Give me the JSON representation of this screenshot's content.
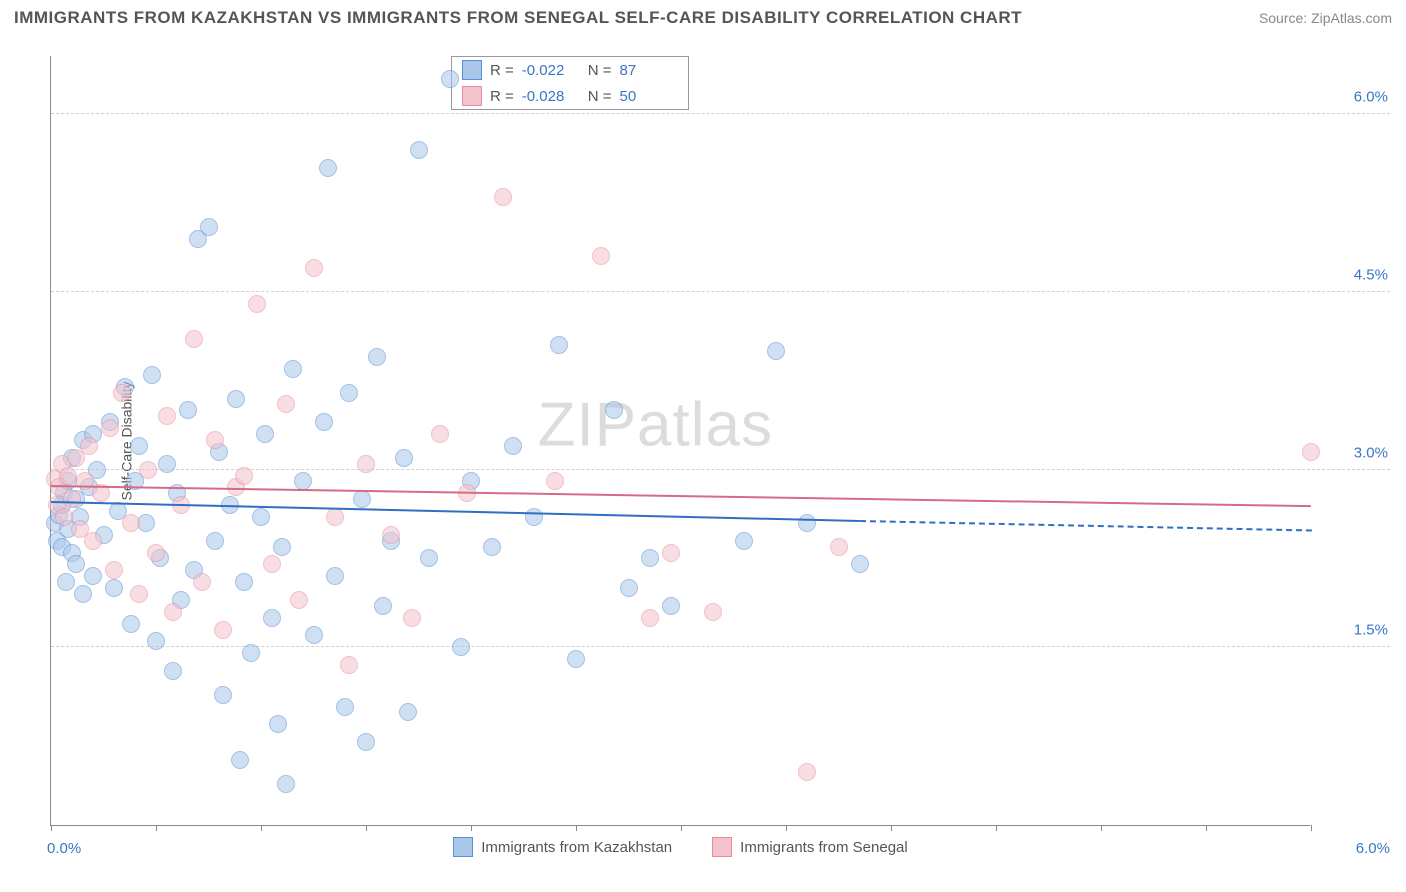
{
  "title": "IMMIGRANTS FROM KAZAKHSTAN VS IMMIGRANTS FROM SENEGAL SELF-CARE DISABILITY CORRELATION CHART",
  "source": "Source: ZipAtlas.com",
  "watermark_a": "ZIP",
  "watermark_b": "atlas",
  "chart": {
    "type": "scatter",
    "ylabel": "Self-Care Disability",
    "xlim": [
      0.0,
      6.0
    ],
    "ylim": [
      0.0,
      6.5
    ],
    "x_ticks": [
      0.0,
      0.5,
      1.0,
      1.5,
      2.0,
      2.5,
      3.0,
      3.5,
      4.0,
      4.5,
      5.0,
      5.5,
      6.0
    ],
    "y_gridlines": [
      1.5,
      3.0,
      4.5,
      6.0
    ],
    "y_tick_labels": [
      "1.5%",
      "3.0%",
      "4.5%",
      "6.0%"
    ],
    "x_axis_left_label": "0.0%",
    "x_axis_right_label": "6.0%",
    "background_color": "#ffffff",
    "grid_color": "#d0d0d0",
    "axis_color": "#888888",
    "label_fontsize": 14,
    "tick_label_color": "#3b75c4",
    "marker_radius": 9,
    "marker_opacity": 0.55,
    "watermark_color": "#dcdcdc",
    "series": [
      {
        "name": "Immigrants from Kazakhstan",
        "fill_color": "#a9c7eb",
        "stroke_color": "#5a8fd4",
        "trend_color": "#2f6fc1",
        "R": "-0.022",
        "N": "87",
        "trend": {
          "x1": 0.0,
          "y1": 2.72,
          "x2": 3.85,
          "y2": 2.56,
          "dash_x2": 6.0,
          "dash_y2": 2.48
        },
        "points": [
          [
            0.02,
            2.55
          ],
          [
            0.03,
            2.4
          ],
          [
            0.04,
            2.62
          ],
          [
            0.05,
            2.35
          ],
          [
            0.05,
            2.7
          ],
          [
            0.06,
            2.8
          ],
          [
            0.07,
            2.05
          ],
          [
            0.08,
            2.9
          ],
          [
            0.08,
            2.5
          ],
          [
            0.1,
            2.3
          ],
          [
            0.1,
            3.1
          ],
          [
            0.12,
            2.75
          ],
          [
            0.12,
            2.2
          ],
          [
            0.14,
            2.6
          ],
          [
            0.15,
            3.25
          ],
          [
            0.15,
            1.95
          ],
          [
            0.18,
            2.85
          ],
          [
            0.2,
            3.3
          ],
          [
            0.2,
            2.1
          ],
          [
            0.22,
            3.0
          ],
          [
            0.25,
            2.45
          ],
          [
            0.28,
            3.4
          ],
          [
            0.3,
            2.0
          ],
          [
            0.32,
            2.65
          ],
          [
            0.35,
            3.7
          ],
          [
            0.38,
            1.7
          ],
          [
            0.4,
            2.9
          ],
          [
            0.42,
            3.2
          ],
          [
            0.45,
            2.55
          ],
          [
            0.48,
            3.8
          ],
          [
            0.5,
            1.55
          ],
          [
            0.52,
            2.25
          ],
          [
            0.55,
            3.05
          ],
          [
            0.58,
            1.3
          ],
          [
            0.6,
            2.8
          ],
          [
            0.62,
            1.9
          ],
          [
            0.65,
            3.5
          ],
          [
            0.68,
            2.15
          ],
          [
            0.7,
            4.95
          ],
          [
            0.75,
            5.05
          ],
          [
            0.78,
            2.4
          ],
          [
            0.8,
            3.15
          ],
          [
            0.82,
            1.1
          ],
          [
            0.85,
            2.7
          ],
          [
            0.88,
            3.6
          ],
          [
            0.9,
            0.55
          ],
          [
            0.92,
            2.05
          ],
          [
            0.95,
            1.45
          ],
          [
            1.0,
            2.6
          ],
          [
            1.02,
            3.3
          ],
          [
            1.05,
            1.75
          ],
          [
            1.08,
            0.85
          ],
          [
            1.1,
            2.35
          ],
          [
            1.12,
            0.35
          ],
          [
            1.15,
            3.85
          ],
          [
            1.2,
            2.9
          ],
          [
            1.25,
            1.6
          ],
          [
            1.3,
            3.4
          ],
          [
            1.32,
            5.55
          ],
          [
            1.35,
            2.1
          ],
          [
            1.4,
            1.0
          ],
          [
            1.42,
            3.65
          ],
          [
            1.48,
            2.75
          ],
          [
            1.5,
            0.7
          ],
          [
            1.55,
            3.95
          ],
          [
            1.58,
            1.85
          ],
          [
            1.62,
            2.4
          ],
          [
            1.68,
            3.1
          ],
          [
            1.7,
            0.95
          ],
          [
            1.75,
            5.7
          ],
          [
            1.8,
            2.25
          ],
          [
            1.9,
            6.3
          ],
          [
            1.95,
            1.5
          ],
          [
            2.0,
            2.9
          ],
          [
            2.1,
            2.35
          ],
          [
            2.2,
            3.2
          ],
          [
            2.3,
            2.6
          ],
          [
            2.42,
            4.05
          ],
          [
            2.5,
            1.4
          ],
          [
            2.68,
            3.5
          ],
          [
            2.75,
            2.0
          ],
          [
            2.85,
            2.25
          ],
          [
            2.95,
            1.85
          ],
          [
            3.3,
            2.4
          ],
          [
            3.45,
            4.0
          ],
          [
            3.6,
            2.55
          ],
          [
            3.85,
            2.2
          ]
        ]
      },
      {
        "name": "Immigrants from Senegal",
        "fill_color": "#f3c3cd",
        "stroke_color": "#e88da0",
        "trend_color": "#d66b86",
        "R": "-0.028",
        "N": "50",
        "trend": {
          "x1": 0.0,
          "y1": 2.85,
          "x2": 6.0,
          "y2": 2.68
        },
        "points": [
          [
            0.02,
            2.92
          ],
          [
            0.03,
            2.7
          ],
          [
            0.04,
            2.85
          ],
          [
            0.05,
            3.05
          ],
          [
            0.06,
            2.6
          ],
          [
            0.08,
            2.95
          ],
          [
            0.1,
            2.75
          ],
          [
            0.12,
            3.1
          ],
          [
            0.14,
            2.5
          ],
          [
            0.16,
            2.9
          ],
          [
            0.18,
            3.2
          ],
          [
            0.2,
            2.4
          ],
          [
            0.24,
            2.8
          ],
          [
            0.28,
            3.35
          ],
          [
            0.3,
            2.15
          ],
          [
            0.34,
            3.65
          ],
          [
            0.38,
            2.55
          ],
          [
            0.42,
            1.95
          ],
          [
            0.46,
            3.0
          ],
          [
            0.5,
            2.3
          ],
          [
            0.55,
            3.45
          ],
          [
            0.58,
            1.8
          ],
          [
            0.62,
            2.7
          ],
          [
            0.68,
            4.1
          ],
          [
            0.72,
            2.05
          ],
          [
            0.78,
            3.25
          ],
          [
            0.82,
            1.65
          ],
          [
            0.88,
            2.85
          ],
          [
            0.92,
            2.95
          ],
          [
            0.98,
            4.4
          ],
          [
            1.05,
            2.2
          ],
          [
            1.12,
            3.55
          ],
          [
            1.18,
            1.9
          ],
          [
            1.25,
            4.7
          ],
          [
            1.35,
            2.6
          ],
          [
            1.42,
            1.35
          ],
          [
            1.5,
            3.05
          ],
          [
            1.62,
            2.45
          ],
          [
            1.72,
            1.75
          ],
          [
            1.85,
            3.3
          ],
          [
            1.98,
            2.8
          ],
          [
            2.15,
            5.3
          ],
          [
            2.4,
            2.9
          ],
          [
            2.62,
            4.8
          ],
          [
            2.85,
            1.75
          ],
          [
            2.95,
            2.3
          ],
          [
            3.15,
            1.8
          ],
          [
            3.6,
            0.45
          ],
          [
            3.75,
            2.35
          ],
          [
            6.0,
            3.15
          ]
        ]
      }
    ]
  }
}
